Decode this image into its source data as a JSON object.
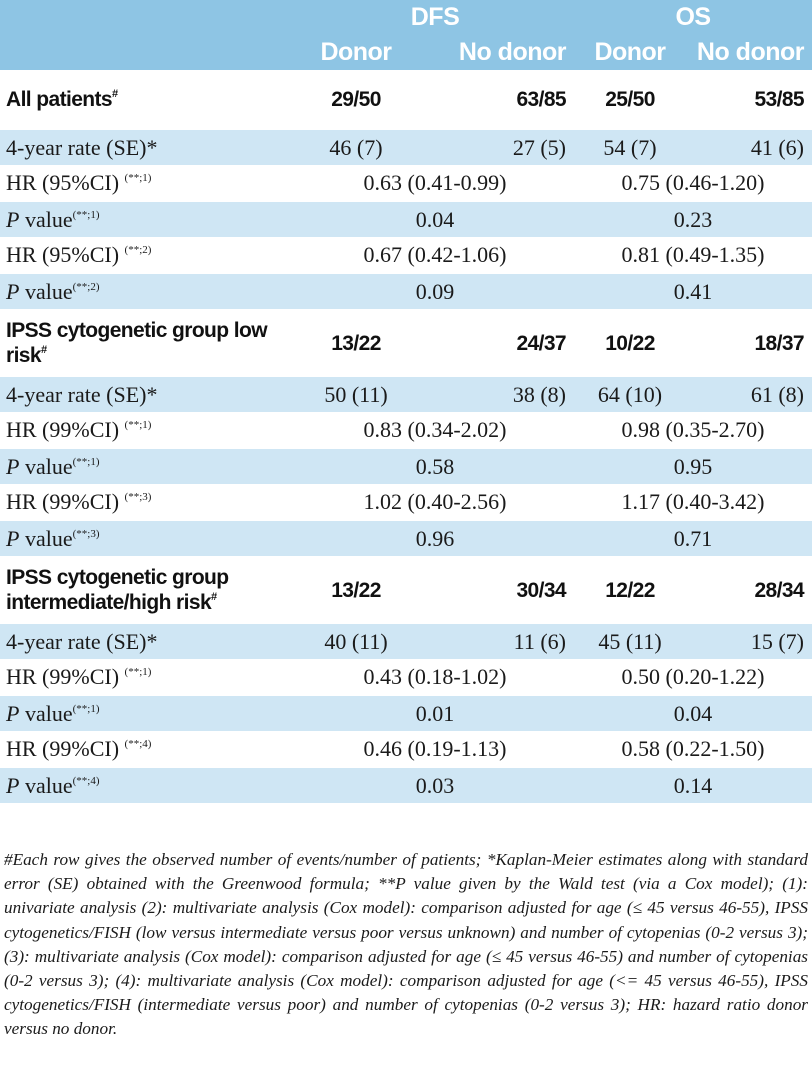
{
  "header": {
    "group1": "DFS",
    "group2": "OS",
    "col_donor_1": "Donor",
    "col_nodonor_1": "No donor",
    "col_donor_2": "Donor",
    "col_nodonor_2": "No donor"
  },
  "all": {
    "label": "All patients",
    "sup": "#",
    "dfs_donor": "29/50",
    "dfs_nodonor": "63/85",
    "os_donor": "25/50",
    "os_nodonor": "53/85",
    "rate_label": "4-year rate (SE)*",
    "rate_dfs_donor": "46 (7)",
    "rate_dfs_nodonor": "27 (5)",
    "rate_os_donor": "54 (7)",
    "rate_os_nodonor": "41 (6)",
    "hr1_label": "HR (95%CI)",
    "hr1_sup": "(**;1)",
    "hr1_dfs": "0.63 (0.41-0.99)",
    "hr1_os": "0.75 (0.46-1.20)",
    "p1_label_i": "P",
    "p1_label": " value",
    "p1_sup": "(**;1)",
    "p1_dfs": "0.04",
    "p1_os": "0.23",
    "hr2_label": "HR (95%CI)",
    "hr2_sup": "(**;2)",
    "hr2_dfs": "0.67 (0.42-1.06)",
    "hr2_os": "0.81 (0.49-1.35)",
    "p2_label_i": "P",
    "p2_label": " value",
    "p2_sup": "(**;2)",
    "p2_dfs": "0.09",
    "p2_os": "0.41"
  },
  "low": {
    "label": "IPSS cytogenetic group low risk",
    "sup": "#",
    "dfs_donor": "13/22",
    "dfs_nodonor": "24/37",
    "os_donor": "10/22",
    "os_nodonor": "18/37",
    "rate_label": "4-year rate (SE)*",
    "rate_dfs_donor": "50 (11)",
    "rate_dfs_nodonor": "38 (8)",
    "rate_os_donor": "64 (10)",
    "rate_os_nodonor": "61 (8)",
    "hr1_label": "HR (99%CI)",
    "hr1_sup": "(**;1)",
    "hr1_dfs": "0.83 (0.34-2.02)",
    "hr1_os": "0.98 (0.35-2.70)",
    "p1_label_i": "P",
    "p1_label": " value",
    "p1_sup": "(**;1)",
    "p1_dfs": "0.58",
    "p1_os": "0.95",
    "hr2_label": "HR (99%CI)",
    "hr2_sup": "(**;3)",
    "hr2_dfs": "1.02 (0.40-2.56)",
    "hr2_os": "1.17 (0.40-3.42)",
    "p2_label_i": "P",
    "p2_label": " value",
    "p2_sup": "(**;3)",
    "p2_dfs": "0.96",
    "p2_os": "0.71"
  },
  "high": {
    "label": "IPSS cytogenetic group intermediate/high risk",
    "sup": "#",
    "dfs_donor": "13/22",
    "dfs_nodonor": "30/34",
    "os_donor": "12/22",
    "os_nodonor": "28/34",
    "rate_label": "4-year rate (SE)*",
    "rate_dfs_donor": "40 (11)",
    "rate_dfs_nodonor": "11 (6)",
    "rate_os_donor": "45 (11)",
    "rate_os_nodonor": "15 (7)",
    "hr1_label": "HR (99%CI)",
    "hr1_sup": "(**;1)",
    "hr1_dfs": "0.43 (0.18-1.02)",
    "hr1_os": "0.50 (0.20-1.22)",
    "p1_label_i": "P",
    "p1_label": " value",
    "p1_sup": "(**;1)",
    "p1_dfs": "0.01",
    "p1_os": "0.04",
    "hr2_label": "HR (99%CI)",
    "hr2_sup": "(**;4)",
    "hr2_dfs": "0.46 (0.19-1.13)",
    "hr2_os": "0.58 (0.22-1.50)",
    "p2_label_i": "P",
    "p2_label": " value",
    "p2_sup": "(**;4)",
    "p2_dfs": "0.03",
    "p2_os": "0.14"
  },
  "footnote": "#Each row gives the observed number of events/number of patients; *Kaplan-Meier estimates along with standard error (SE) obtained with the Greenwood formula; **P value given by the Wald test (via a Cox model); (1): univariate analysis (2): multivariate analysis (Cox model): comparison adjusted for age (≤ 45 versus 46-55), IPSS cytogenetics/FISH (low versus intermediate versus poor versus unknown) and number of cytopenias (0-2 versus 3); (3): multivariate analysis (Cox model): comparison adjusted for age (≤ 45 versus 46-55) and number of cytopenias (0-2 versus 3); (4): multivariate analysis (Cox model): comparison adjusted for age (<= 45 versus 46-55), IPSS cytogenetics/FISH (intermediate versus poor) and number of cytopenias (0-2 versus 3); HR: hazard ratio donor versus no donor.",
  "colors": {
    "header_bg": "#8ec5e4",
    "band_bg": "#cfe6f4"
  }
}
